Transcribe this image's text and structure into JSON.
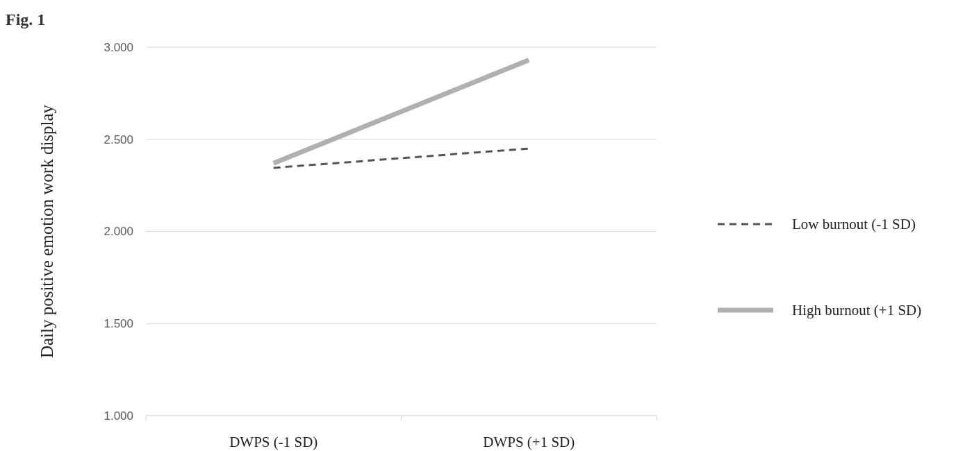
{
  "chart_data": {
    "type": "line",
    "title": "Fig. 1",
    "ylabel": "Daily positive emotion work display",
    "categories": [
      "DWPS (-1 SD)",
      "DWPS (+1 SD)"
    ],
    "series": [
      {
        "name": "Low burnout (-1 SD)",
        "color": "#555555",
        "line_style": "dashed",
        "values": [
          2.345,
          2.45
        ]
      },
      {
        "name": "High burnout (+1 SD)",
        "color": "#b0b0b0",
        "line_style": "solid",
        "values": [
          2.37,
          2.93
        ]
      }
    ],
    "ylim": [
      1,
      3
    ],
    "yticks": [
      {
        "value": 1,
        "label": "1.000"
      },
      {
        "value": 1.5,
        "label": "1.500"
      },
      {
        "value": 2,
        "label": "2.000"
      },
      {
        "value": 2.5,
        "label": "2.500"
      },
      {
        "value": 3,
        "label": "3.000"
      }
    ],
    "grid": "y",
    "legend": "right",
    "marker": "none"
  }
}
